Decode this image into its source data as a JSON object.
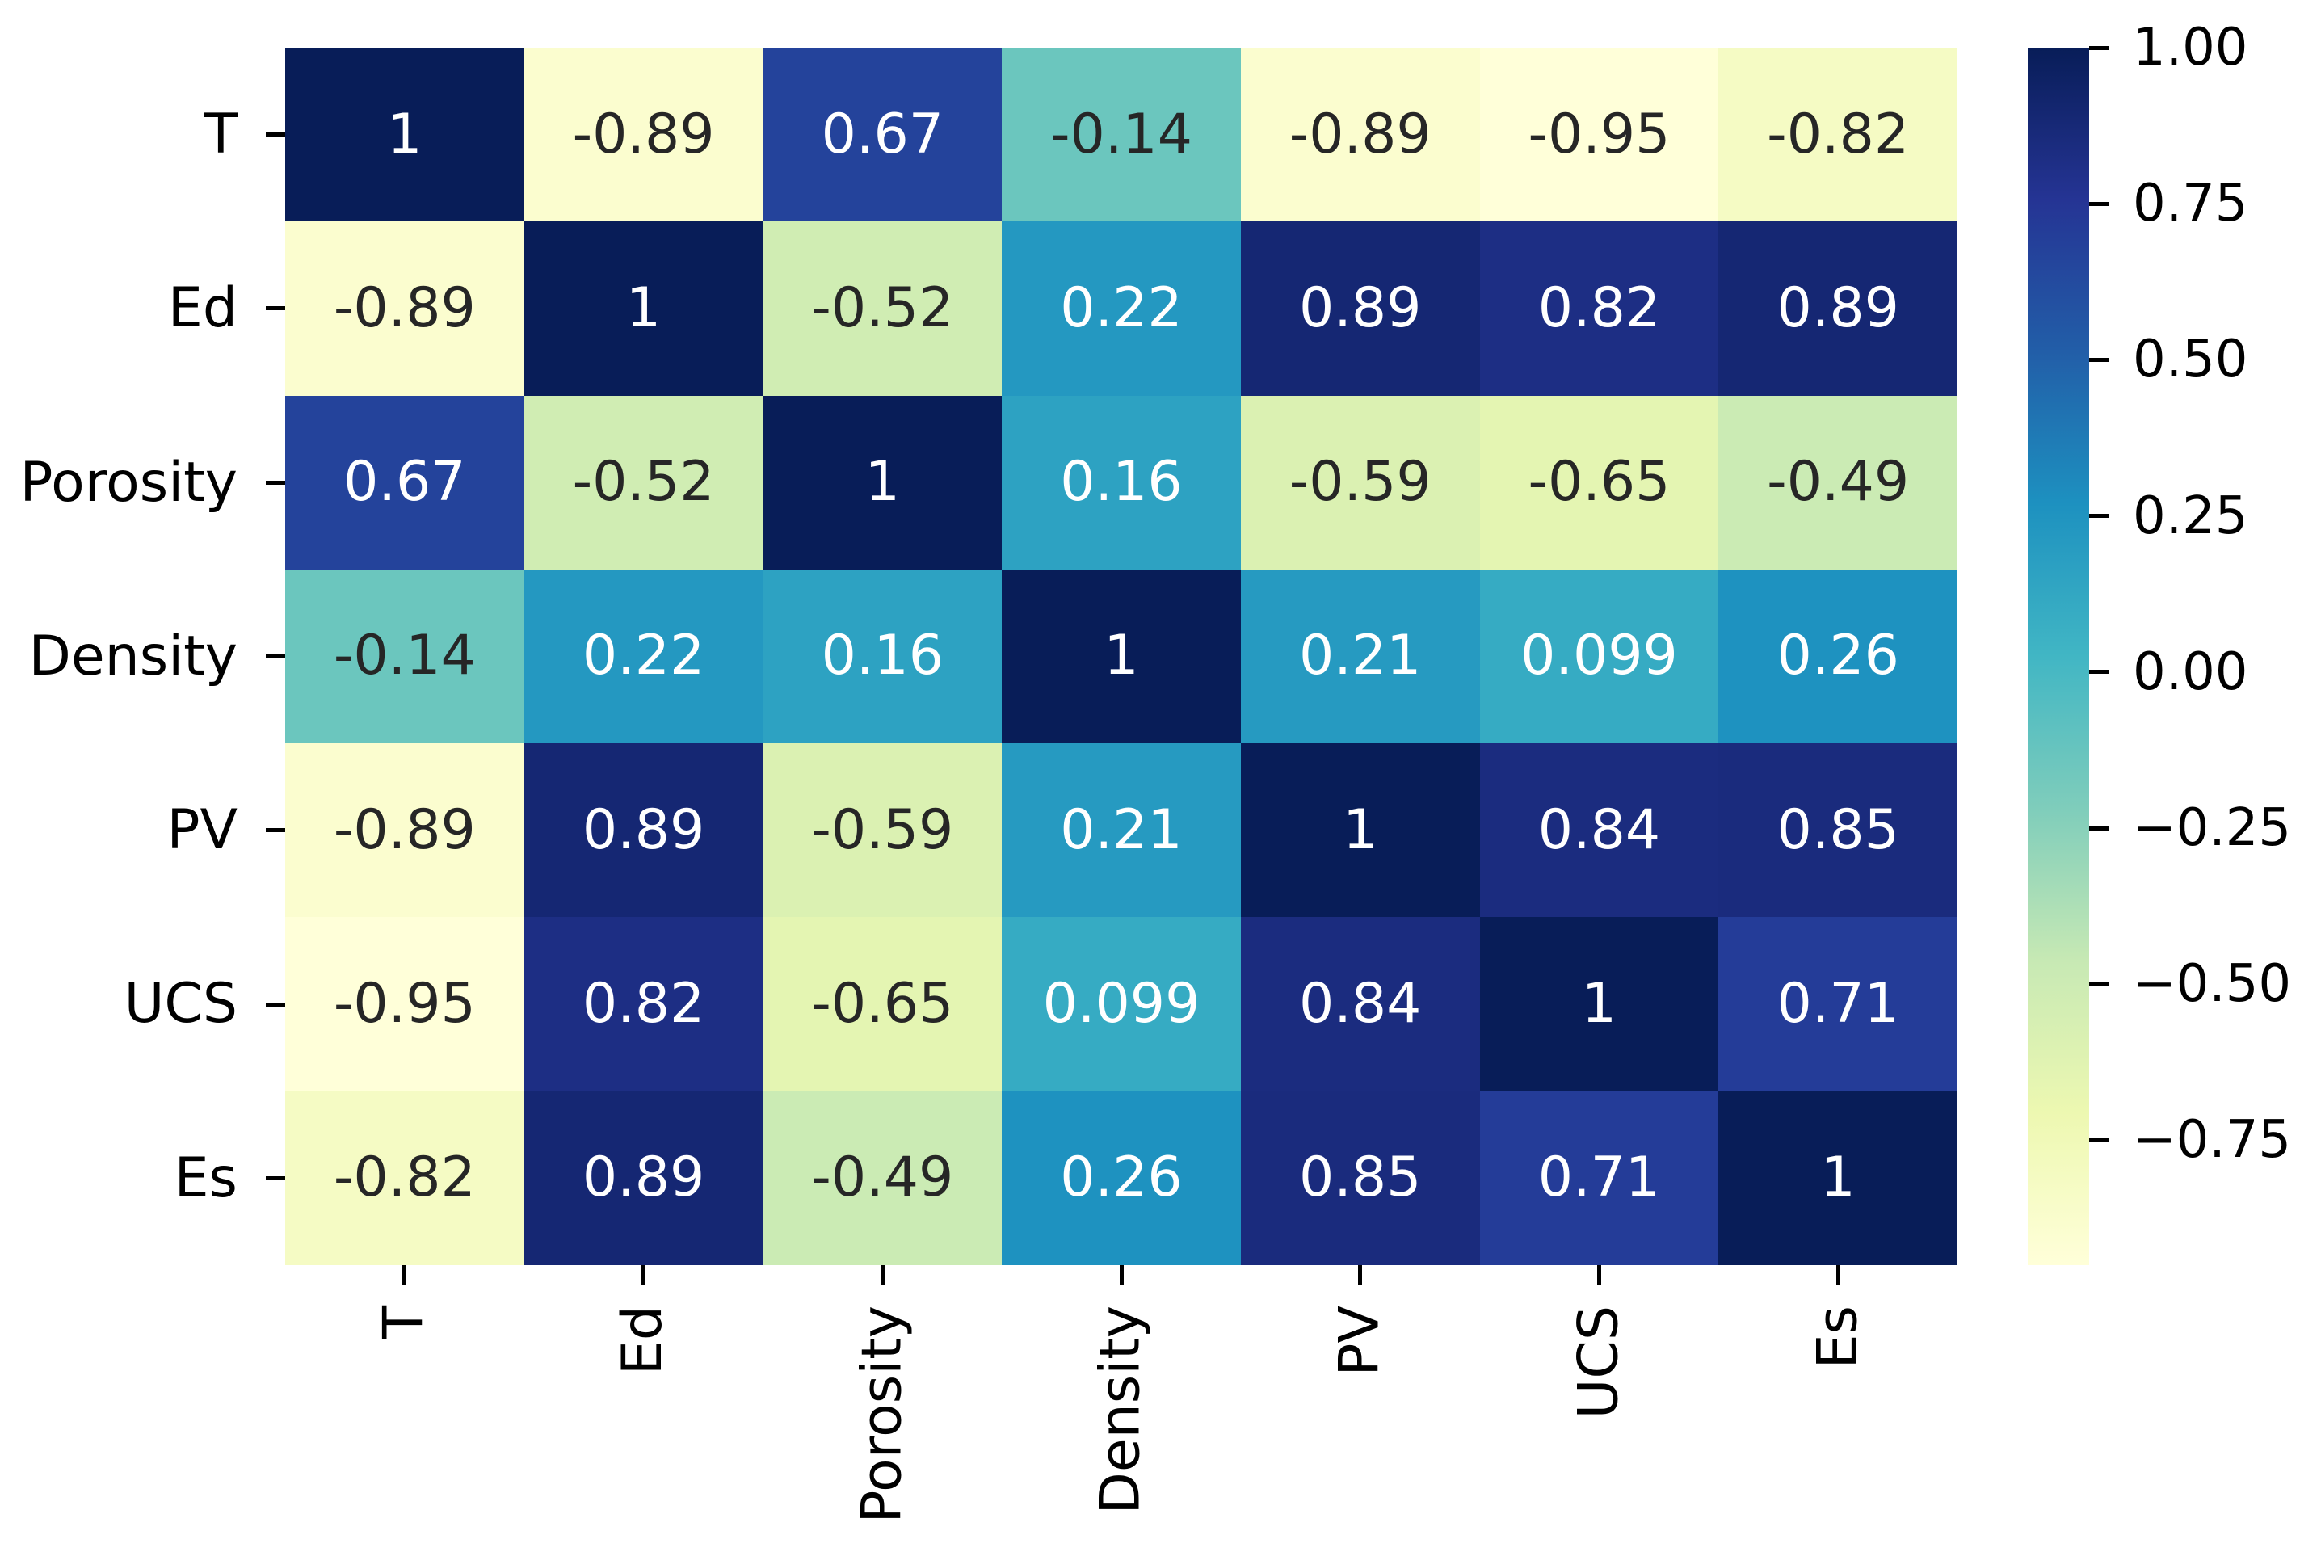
{
  "chart_data": {
    "type": "heatmap",
    "categories": [
      "T",
      "Ed",
      "Porosity",
      "Density",
      "PV",
      "UCS",
      "Es"
    ],
    "matrix": [
      [
        1,
        -0.89,
        0.67,
        -0.14,
        -0.89,
        -0.95,
        -0.82
      ],
      [
        -0.89,
        1,
        -0.52,
        0.22,
        0.89,
        0.82,
        0.89
      ],
      [
        0.67,
        -0.52,
        1,
        0.16,
        -0.59,
        -0.65,
        -0.49
      ],
      [
        -0.14,
        0.22,
        0.16,
        1,
        0.21,
        0.099,
        0.26
      ],
      [
        -0.89,
        0.89,
        -0.59,
        0.21,
        1,
        0.84,
        0.85
      ],
      [
        -0.95,
        0.82,
        -0.65,
        0.099,
        0.84,
        1,
        0.71
      ],
      [
        -0.82,
        0.89,
        -0.49,
        0.26,
        0.85,
        0.71,
        1
      ]
    ],
    "vmin": -0.95,
    "vmax": 1.0,
    "colormap": {
      "name": "YlGnBu",
      "stops": [
        [
          0,
          "#ffffd9"
        ],
        [
          0.125,
          "#edf8b1"
        ],
        [
          0.25,
          "#c7e9b4"
        ],
        [
          0.375,
          "#7fcdbb"
        ],
        [
          0.5,
          "#41b6c4"
        ],
        [
          0.625,
          "#1d91c0"
        ],
        [
          0.75,
          "#225ea8"
        ],
        [
          0.875,
          "#253494"
        ],
        [
          1,
          "#081d58"
        ]
      ]
    },
    "colorbar_ticks": [
      1.0,
      0.75,
      0.5,
      0.25,
      0.0,
      -0.25,
      -0.5,
      -0.75
    ],
    "annotation": {
      "light_text": "#ffffff",
      "dark_text": "#262626",
      "luminance_threshold": 0.408
    },
    "background": "#ffffff",
    "axis_text_color": "#000000",
    "grid": false,
    "legend_position": "right-colorbar"
  }
}
